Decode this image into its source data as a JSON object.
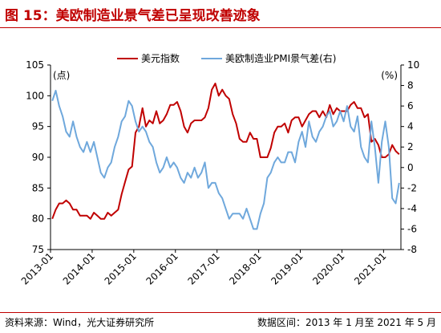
{
  "title": "图 15：美欧制造业景气差已呈现改善迹象",
  "footer": {
    "source": "资料来源：Wind，光大证券研究所",
    "range": "数据区间：2013 年 1 月至 2021 年 5 月"
  },
  "colors": {
    "dxy": "#c00000",
    "pmi": "#6fa8dc",
    "accent": "#c00000"
  },
  "chart_data": {
    "type": "line",
    "y_left": {
      "unit": "(点)",
      "ylim": [
        75,
        105
      ],
      "ticks": [
        "75",
        "80",
        "85",
        "90",
        "95",
        "100",
        "105"
      ]
    },
    "y_right": {
      "unit": "(%)",
      "ylim": [
        -8,
        10
      ],
      "ticks": [
        "-8",
        "-6",
        "-4",
        "-2",
        "0",
        "2",
        "4",
        "6",
        "8",
        "10"
      ]
    },
    "x_ticks": [
      "2013-01",
      "2014-01",
      "2015-01",
      "2016-01",
      "2017-01",
      "2018-01",
      "2019-01",
      "2020-01",
      "2021-01"
    ],
    "x_range": [
      "2013-01",
      "2021-05"
    ],
    "legend": "top-center",
    "grid": false,
    "series": [
      {
        "name": "美元指数",
        "axis": "left",
        "x_start": "2013-01",
        "step": "month",
        "values": [
          80,
          81.5,
          82.5,
          82.5,
          83,
          82.5,
          81.5,
          81.5,
          80.5,
          80.5,
          80.5,
          80,
          81,
          80.5,
          80,
          80,
          81,
          80.5,
          81,
          81.5,
          84,
          86,
          88,
          88.5,
          94,
          95,
          98,
          95,
          96,
          95.5,
          97.5,
          95.5,
          96,
          97,
          98.5,
          98.5,
          99,
          97.5,
          95,
          94,
          95.5,
          96,
          96,
          96,
          96.5,
          98,
          101,
          102,
          100,
          101,
          100,
          99.5,
          97,
          95.5,
          93,
          92.5,
          92.5,
          94,
          93,
          93,
          90,
          90,
          90,
          91.5,
          94,
          95,
          95,
          95.5,
          94,
          96,
          96.5,
          96.5,
          95,
          96,
          97,
          97.5,
          97.5,
          96.5,
          97.5,
          96.5,
          98.5,
          97,
          98,
          97.5,
          97.5,
          97.5,
          98.5,
          99,
          98,
          98,
          96.5,
          97,
          92.5,
          93,
          92,
          90,
          90,
          90.5,
          92,
          91,
          90.5
        ]
      },
      {
        "name": "美欧制造业PMI景气差(右)",
        "axis": "right",
        "x_start": "2013-01",
        "step": "month",
        "values": [
          6.5,
          7.5,
          6,
          5,
          3.5,
          3,
          4.5,
          3,
          2,
          1.5,
          2.5,
          1.5,
          2.5,
          1,
          -0.5,
          -1,
          0,
          0.5,
          2,
          3,
          4.5,
          5,
          6.5,
          6,
          4.5,
          3.5,
          4,
          3.5,
          2.5,
          2,
          0.5,
          -0.5,
          0,
          1,
          0,
          0.5,
          0,
          -1,
          -1.5,
          -0.5,
          -1,
          0,
          -1,
          -0.5,
          0.5,
          -2,
          -1.5,
          -1.5,
          -2.5,
          -3,
          -4,
          -5,
          -4.5,
          -4.5,
          -4.5,
          -5,
          -4,
          -5,
          -6,
          -6,
          -4.5,
          -3.5,
          -1,
          -0.5,
          0.5,
          1,
          0.5,
          0.5,
          1.5,
          1.5,
          0.5,
          2.5,
          3.5,
          2,
          4.5,
          3,
          2.5,
          3.5,
          4,
          5,
          5.5,
          4,
          4.5,
          5.5,
          4.5,
          6,
          4,
          3.5,
          5,
          2,
          1,
          0.5,
          4.5,
          2,
          -1.5,
          2.5,
          4.5,
          2,
          -3,
          -3.5,
          -1.5
        ]
      }
    ]
  }
}
